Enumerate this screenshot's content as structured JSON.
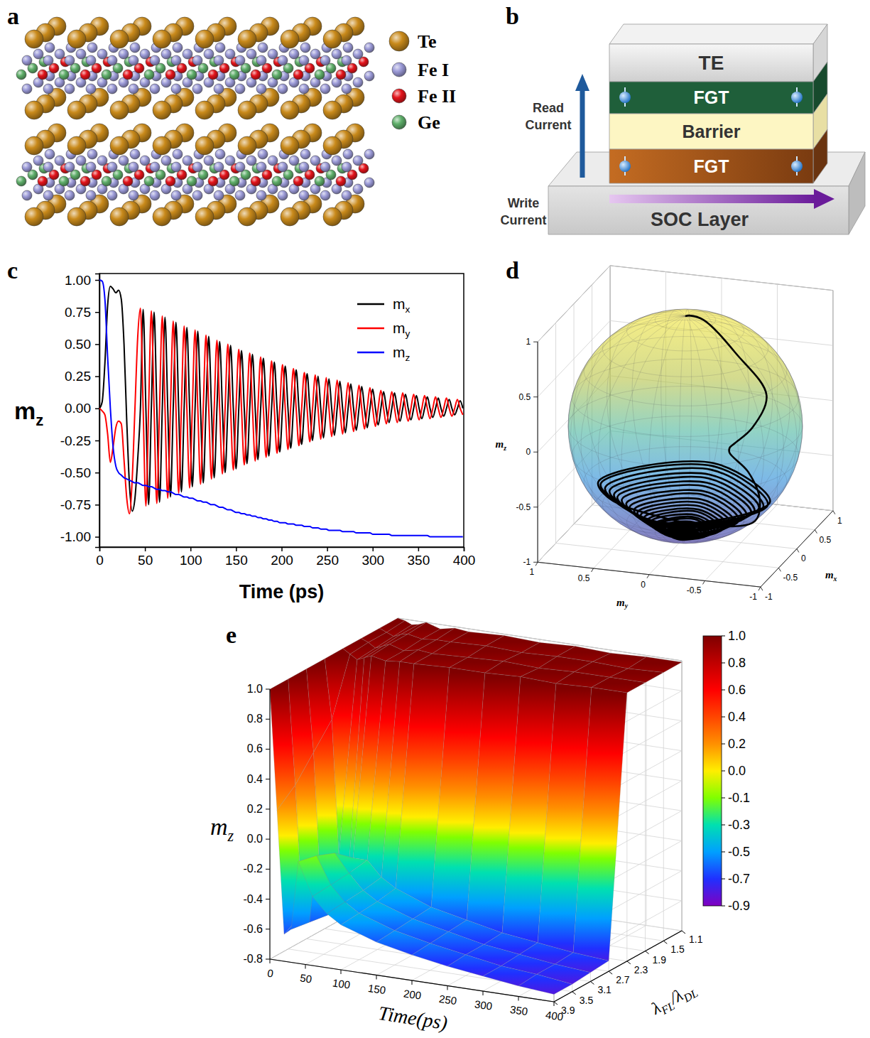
{
  "panel_letters": [
    "a",
    "b",
    "c",
    "d",
    "e"
  ],
  "structure": {
    "legend": [
      {
        "label": "Te",
        "color": "#c98a1b"
      },
      {
        "label": "Fe I",
        "color": "#9c9bd8"
      },
      {
        "label": "Fe II",
        "color": "#e3141b"
      },
      {
        "label": "Ge",
        "color": "#5fae6a"
      }
    ]
  },
  "device": {
    "layers": [
      "TE",
      "FGT",
      "Barrier",
      "FGT",
      "SOC Layer"
    ],
    "read_current": "Read Current",
    "write_current": "Write Current"
  },
  "chart_data": [
    {
      "type": "line",
      "xlabel": "Time (ps)",
      "ylabel": "mz",
      "xlim": [
        0,
        400
      ],
      "ylim": [
        -1.08,
        1.05
      ],
      "xticks": [
        0,
        50,
        100,
        150,
        200,
        250,
        300,
        350,
        400
      ],
      "yticks": [
        {
          "value": -1,
          "label": "-1.00"
        },
        -0.75,
        {
          "value": -0.5,
          "label": "-0.50"
        },
        -0.25,
        {
          "value": 0,
          "label": "0.00"
        },
        0.25,
        {
          "value": 0.5,
          "label": "0.50"
        },
        0.75,
        {
          "value": 1,
          "label": "1.00"
        }
      ],
      "legend": "upper right",
      "x": [
        0,
        3,
        6,
        9,
        12,
        15,
        18,
        21,
        24,
        27,
        30,
        33,
        36,
        39,
        42,
        45,
        48,
        51,
        54,
        57,
        60,
        63,
        66,
        69,
        72,
        75,
        78,
        81,
        84,
        87,
        90,
        93,
        96,
        99,
        102,
        105,
        108,
        111,
        114,
        117,
        120,
        123,
        126,
        129,
        132,
        135,
        138,
        141,
        144,
        147,
        150,
        153,
        156,
        159,
        162,
        165,
        168,
        171,
        174,
        177,
        180,
        183,
        186,
        189,
        192,
        195,
        198,
        201,
        204,
        207,
        210,
        213,
        216,
        219,
        222,
        225,
        228,
        231,
        234,
        237,
        240,
        243,
        246,
        249,
        252,
        255,
        258,
        261,
        264,
        267,
        270,
        273,
        276,
        279,
        282,
        285,
        288,
        291,
        294,
        297,
        300,
        303,
        306,
        309,
        312,
        315,
        318,
        321,
        324,
        327,
        330,
        333,
        336,
        339,
        342,
        345,
        348,
        351,
        354,
        357,
        360,
        363,
        366,
        369,
        372,
        375,
        378,
        381,
        384,
        387,
        390,
        393,
        396,
        399
      ],
      "series": [
        {
          "name": "mx",
          "color": "#000000",
          "values": [
            0,
            0.05,
            0.35,
            0.8,
            0.95,
            0.93,
            0.9,
            0.92,
            0.85,
            0.5,
            -0.1,
            -0.6,
            -0.8,
            -0.7,
            -0.4,
            0,
            0.77,
            0,
            -0.75,
            0,
            0.75,
            0,
            -0.73,
            0,
            0.71,
            0,
            -0.69,
            0,
            0.67,
            0,
            -0.65,
            0,
            0.63,
            0,
            -0.61,
            0,
            0.6,
            0,
            -0.58,
            0,
            0.56,
            0,
            -0.54,
            0,
            0.52,
            0,
            -0.5,
            0,
            0.49,
            0,
            -0.47,
            0,
            0.45,
            0,
            -0.43,
            0,
            0.42,
            0,
            -0.4,
            0,
            0.39,
            0,
            -0.37,
            0,
            0.36,
            0,
            -0.34,
            0,
            0.33,
            0,
            -0.31,
            0,
            0.3,
            0,
            -0.28,
            0,
            0.27,
            0,
            -0.25,
            0,
            0.25,
            0,
            -0.23,
            0,
            0.23,
            0,
            -0.21,
            0,
            0.21,
            0,
            -0.19,
            0,
            0.19,
            0,
            -0.17,
            0,
            0.17,
            0,
            -0.15,
            0,
            0.15,
            0,
            -0.13,
            0,
            0.13,
            0,
            -0.11,
            0,
            0.12,
            0,
            -0.1,
            0,
            0.11,
            0,
            -0.09,
            0,
            0.1,
            0,
            -0.08,
            0,
            0.09,
            0,
            -0.07,
            0,
            0.08,
            0,
            -0.06,
            0,
            0.07,
            0,
            -0.05,
            0,
            0.06,
            0
          ]
        },
        {
          "name": "my",
          "color": "#ff0000",
          "values": [
            0,
            -0.02,
            -0.05,
            -0.2,
            -0.42,
            -0.3,
            -0.15,
            -0.1,
            -0.12,
            -0.4,
            -0.7,
            -0.82,
            -0.55,
            0,
            0.55,
            0.78,
            0,
            -0.76,
            0,
            0.76,
            0,
            -0.74,
            0,
            0.72,
            0,
            -0.7,
            0,
            0.68,
            0,
            -0.66,
            0,
            0.64,
            0,
            -0.62,
            0,
            0.61,
            0,
            -0.59,
            0,
            0.57,
            0,
            -0.55,
            0,
            0.53,
            0,
            -0.51,
            0,
            0.5,
            0,
            -0.48,
            0,
            0.46,
            0,
            -0.44,
            0,
            0.43,
            0,
            -0.41,
            0,
            0.4,
            0,
            -0.38,
            0,
            0.37,
            0,
            -0.35,
            0,
            0.34,
            0,
            -0.32,
            0,
            0.31,
            0,
            -0.29,
            0,
            0.28,
            0,
            -0.26,
            0,
            0.26,
            0,
            -0.24,
            0,
            0.24,
            0,
            -0.22,
            0,
            0.22,
            0,
            -0.2,
            0,
            0.2,
            0,
            -0.18,
            0,
            0.18,
            0,
            -0.16,
            0,
            0.16,
            0,
            -0.14,
            0,
            0.14,
            0,
            -0.12,
            0,
            0.13,
            0,
            -0.11,
            0,
            0.12,
            0,
            -0.1,
            0,
            0.11,
            0,
            -0.09,
            0,
            0.1,
            0,
            -0.08,
            0,
            0.09,
            0,
            -0.07,
            0,
            0.08,
            0,
            -0.06,
            0,
            0.07,
            0,
            -0.05
          ]
        },
        {
          "name": "mz",
          "color": "#0000ff",
          "values": [
            1,
            0.99,
            0.85,
            0.4,
            0,
            -0.3,
            -0.45,
            -0.5,
            -0.52,
            -0.54,
            -0.55,
            -0.56,
            -0.57,
            -0.58,
            -0.58,
            -0.59,
            -0.6,
            -0.6,
            -0.61,
            -0.61,
            -0.62,
            -0.63,
            -0.63,
            -0.64,
            -0.64,
            -0.65,
            -0.65,
            -0.66,
            -0.67,
            -0.67,
            -0.68,
            -0.69,
            -0.69,
            -0.7,
            -0.7,
            -0.71,
            -0.72,
            -0.72,
            -0.73,
            -0.73,
            -0.74,
            -0.75,
            -0.75,
            -0.76,
            -0.77,
            -0.77,
            -0.78,
            -0.79,
            -0.79,
            -0.8,
            -0.81,
            -0.81,
            -0.82,
            -0.82,
            -0.83,
            -0.83,
            -0.84,
            -0.84,
            -0.85,
            -0.85,
            -0.86,
            -0.86,
            -0.87,
            -0.87,
            -0.88,
            -0.88,
            -0.89,
            -0.89,
            -0.89,
            -0.9,
            -0.9,
            -0.9,
            -0.91,
            -0.91,
            -0.91,
            -0.92,
            -0.92,
            -0.92,
            -0.93,
            -0.93,
            -0.93,
            -0.94,
            -0.94,
            -0.94,
            -0.95,
            -0.95,
            -0.95,
            -0.95,
            -0.95,
            -0.96,
            -0.96,
            -0.96,
            -0.96,
            -0.96,
            -0.97,
            -0.97,
            -0.97,
            -0.97,
            -0.97,
            -0.97,
            -0.98,
            -0.98,
            -0.98,
            -0.98,
            -0.98,
            -0.98,
            -0.98,
            -0.99,
            -0.99,
            -0.99,
            -0.99,
            -0.99,
            -0.99,
            -0.99,
            -0.99,
            -0.99,
            -0.99,
            -0.99,
            -0.99,
            -0.99,
            -0.99,
            -1,
            -1,
            -1,
            -1,
            -1,
            -1,
            -1,
            -1,
            -1,
            -1,
            -1,
            -1,
            -1
          ]
        }
      ]
    },
    {
      "type": "trajectory3d",
      "xlabel": "mx",
      "ylabel": "my",
      "zlabel": "mz",
      "xlim": [
        -1,
        1
      ],
      "ylim": [
        -1,
        1
      ],
      "zlim": [
        -1,
        1
      ],
      "xticks": [
        -1,
        -0.5,
        0,
        0.5,
        1
      ],
      "yticks": [
        -1,
        -0.5,
        0,
        0.5,
        1
      ],
      "zticks": [
        -1,
        -0.5,
        0,
        0.5,
        1
      ],
      "grid": true,
      "color": "#000000"
    },
    {
      "type": "surface",
      "xlabel": "Time(ps)",
      "ylabel": [
        "λ",
        "FL",
        "/λ",
        "DL"
      ],
      "zlabel": "mz",
      "x": [
        0,
        10,
        20,
        30,
        40,
        60,
        80,
        100,
        150,
        200,
        250,
        300,
        350,
        400
      ],
      "y": [
        1.1,
        1.5,
        1.9,
        2.3,
        2.7,
        3.1,
        3.5,
        3.9
      ],
      "z": [
        [
          1,
          0.99,
          0.97,
          0.98,
          1,
          0.97,
          0.99,
          0.98,
          0.99,
          0.98,
          0.99,
          0.98,
          0.99,
          0.99
        ],
        [
          1,
          0.98,
          0.96,
          0.98,
          0.99,
          0.97,
          0.98,
          0.98,
          0.99,
          0.98,
          0.99,
          0.99,
          0.98,
          0.99
        ],
        [
          1,
          0.98,
          0.95,
          0.97,
          0.99,
          0.96,
          0.98,
          0.97,
          0.98,
          0.99,
          0.98,
          0.99,
          0.99,
          0.99
        ],
        [
          1,
          0.97,
          0.94,
          0.96,
          0.98,
          0.96,
          0.97,
          0.97,
          0.98,
          0.98,
          0.99,
          0.98,
          0.99,
          0.99
        ],
        [
          1,
          0.6,
          -0.3,
          -0.62,
          -0.3,
          -0.3,
          -0.4,
          -0.46,
          -0.55,
          -0.6,
          -0.65,
          -0.68,
          -0.71,
          -0.73
        ],
        [
          1,
          0.45,
          -0.45,
          -0.62,
          -0.2,
          -0.32,
          -0.42,
          -0.48,
          -0.56,
          -0.61,
          -0.66,
          -0.69,
          -0.72,
          -0.74
        ],
        [
          1,
          0.3,
          -0.55,
          -0.6,
          -0.15,
          -0.33,
          -0.43,
          -0.49,
          -0.57,
          -0.62,
          -0.66,
          -0.7,
          -0.72,
          -0.75
        ],
        [
          1,
          0.2,
          -0.62,
          -0.58,
          -0.12,
          -0.34,
          -0.44,
          -0.5,
          -0.58,
          -0.63,
          -0.67,
          -0.7,
          -0.73,
          -0.75
        ]
      ],
      "xlim": [
        0,
        400
      ],
      "ylim": [
        1.1,
        3.9
      ],
      "zlim": [
        -0.8,
        1.0
      ],
      "xticks": [
        0,
        50,
        100,
        150,
        200,
        250,
        300,
        350,
        400
      ],
      "yticks": [
        1.1,
        1.5,
        1.9,
        2.3,
        2.7,
        3.1,
        3.5,
        3.9
      ],
      "zticks": [
        -0.8,
        -0.6,
        -0.4,
        -0.2,
        {
          "value": 0,
          "label": "0.0"
        },
        0.2,
        0.4,
        0.6,
        0.8,
        {
          "value": 1,
          "label": "1.0"
        }
      ],
      "colorbar_range": [
        -0.9,
        1.0
      ],
      "colorbar_ticks": [
        {
          "value": 1,
          "label": "1.0"
        },
        0.8,
        0.6,
        0.4,
        0.2,
        {
          "value": 0,
          "label": "0.0"
        },
        -0.1,
        -0.3,
        -0.5,
        -0.7,
        -0.9
      ]
    }
  ]
}
